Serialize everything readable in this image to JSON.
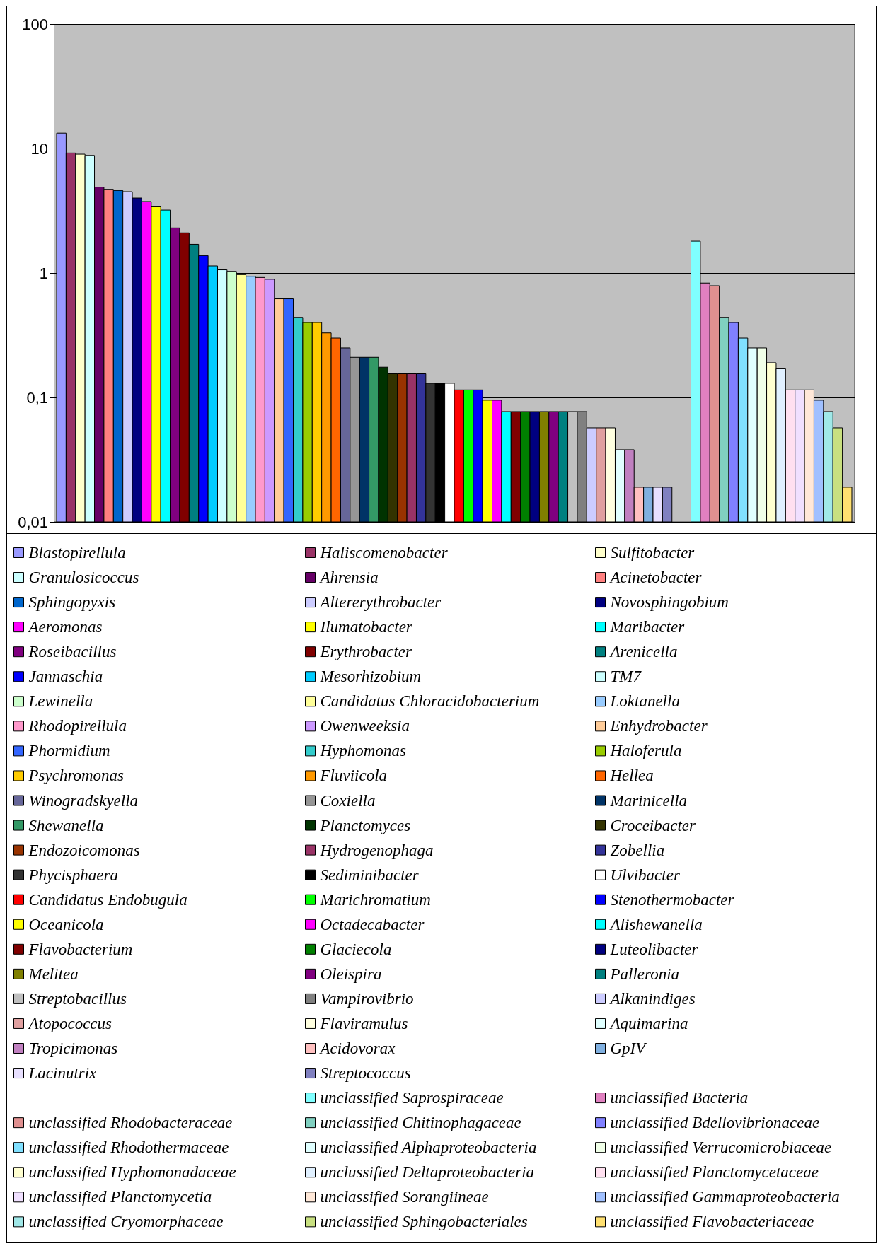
{
  "chart_data": {
    "type": "bar",
    "log": true,
    "grid": "y",
    "legend": "bottom",
    "ylim": [
      0.01,
      100
    ],
    "yticks": [
      {
        "value": 0.01,
        "label": "0,01"
      },
      {
        "value": 0.1,
        "label": "0,1"
      },
      1,
      10,
      100
    ],
    "categories": [
      null
    ],
    "series": [
      {
        "name": "Blastopirellula",
        "color": "#9999ff",
        "values": [
          13.3
        ]
      },
      {
        "name": "Haliscomenobacter",
        "color": "#993366",
        "values": [
          9.2
        ]
      },
      {
        "name": "Sulfitobacter",
        "color": "#ffffcc",
        "values": [
          9.0
        ]
      },
      {
        "name": "Granulosicoccus",
        "color": "#ccffff",
        "values": [
          8.8
        ]
      },
      {
        "name": "Ahrensia",
        "color": "#660066",
        "values": [
          4.9
        ]
      },
      {
        "name": "Acinetobacter",
        "color": "#ff8080",
        "values": [
          4.7
        ]
      },
      {
        "name": "Sphingopyxis",
        "color": "#0066cc",
        "values": [
          4.6
        ]
      },
      {
        "name": "Altererythrobacter",
        "color": "#ccccff",
        "values": [
          4.5
        ]
      },
      {
        "name": "Novosphingobium",
        "color": "#000080",
        "values": [
          4.0
        ]
      },
      {
        "name": "Aeromonas",
        "color": "#ff00ff",
        "values": [
          3.75
        ]
      },
      {
        "name": "Ilumatobacter",
        "color": "#ffff00",
        "values": [
          3.4
        ]
      },
      {
        "name": "Maribacter",
        "color": "#00ffff",
        "values": [
          3.2
        ]
      },
      {
        "name": "Roseibacillus",
        "color": "#800080",
        "values": [
          2.3
        ]
      },
      {
        "name": "Erythrobacter",
        "color": "#800000",
        "values": [
          2.1
        ]
      },
      {
        "name": "Arenicella",
        "color": "#008080",
        "values": [
          1.7
        ]
      },
      {
        "name": "Jannaschia",
        "color": "#0000ff",
        "values": [
          1.38
        ]
      },
      {
        "name": "Mesorhizobium",
        "color": "#00ccff",
        "values": [
          1.14
        ]
      },
      {
        "name": "TM7",
        "color": "#ccffff",
        "values": [
          1.06
        ]
      },
      {
        "name": "Lewinella",
        "color": "#ccffcc",
        "values": [
          1.03
        ]
      },
      {
        "name": "Candidatus Chloracidobacterium",
        "color": "#ffff99",
        "values": [
          0.97
        ]
      },
      {
        "name": "Loktanella",
        "color": "#99ccff",
        "values": [
          0.94
        ]
      },
      {
        "name": "Rhodopirellula",
        "color": "#ff99cc",
        "values": [
          0.92
        ]
      },
      {
        "name": "Owenweeksia",
        "color": "#cc99ff",
        "values": [
          0.89
        ]
      },
      {
        "name": "Enhydrobacter",
        "color": "#ffcc99",
        "values": [
          0.62
        ]
      },
      {
        "name": "Phormidium",
        "color": "#3366ff",
        "values": [
          0.62
        ]
      },
      {
        "name": "Hyphomonas",
        "color": "#33cccc",
        "values": [
          0.44
        ]
      },
      {
        "name": "Haloferula",
        "color": "#99cc00",
        "values": [
          0.4
        ]
      },
      {
        "name": "Psychromonas",
        "color": "#ffcc00",
        "values": [
          0.4
        ]
      },
      {
        "name": "Fluviicola",
        "color": "#ff9900",
        "values": [
          0.33
        ]
      },
      {
        "name": "Hellea",
        "color": "#ff6600",
        "values": [
          0.3
        ]
      },
      {
        "name": "Winogradskyella",
        "color": "#666699",
        "values": [
          0.25
        ]
      },
      {
        "name": "Coxiella",
        "color": "#969696",
        "values": [
          0.21
        ]
      },
      {
        "name": "Marinicella",
        "color": "#003366",
        "values": [
          0.21
        ]
      },
      {
        "name": "Shewanella",
        "color": "#339966",
        "values": [
          0.21
        ]
      },
      {
        "name": "Planctomyces",
        "color": "#003300",
        "values": [
          0.175
        ]
      },
      {
        "name": "Croceibacter",
        "color": "#333300",
        "values": [
          0.155
        ]
      },
      {
        "name": "Endozoicomonas",
        "color": "#993300",
        "values": [
          0.155
        ]
      },
      {
        "name": "Hydrogenophaga",
        "color": "#993366",
        "values": [
          0.155
        ]
      },
      {
        "name": "Zobellia",
        "color": "#333399",
        "values": [
          0.155
        ]
      },
      {
        "name": "Phycisphaera",
        "color": "#333333",
        "values": [
          0.13
        ]
      },
      {
        "name": "Sediminibacter",
        "color": "#000000",
        "values": [
          0.13
        ]
      },
      {
        "name": "Ulvibacter",
        "color": "#ffffff",
        "values": [
          0.13
        ]
      },
      {
        "name": "Candidatus Endobugula",
        "color": "#ff0000",
        "values": [
          0.115
        ]
      },
      {
        "name": "Marichromatium",
        "color": "#00ff00",
        "values": [
          0.115
        ]
      },
      {
        "name": "Stenothermobacter",
        "color": "#0000ff",
        "values": [
          0.115
        ]
      },
      {
        "name": "Oceanicola",
        "color": "#ffff00",
        "values": [
          0.095
        ]
      },
      {
        "name": "Octadecabacter",
        "color": "#ff00ff",
        "values": [
          0.095
        ]
      },
      {
        "name": "Alishewanella",
        "color": "#00ffff",
        "values": [
          0.077
        ]
      },
      {
        "name": "Flavobacterium",
        "color": "#800000",
        "values": [
          0.077
        ]
      },
      {
        "name": "Glaciecola",
        "color": "#008000",
        "values": [
          0.077
        ]
      },
      {
        "name": "Luteolibacter",
        "color": "#000080",
        "values": [
          0.077
        ]
      },
      {
        "name": "Melitea",
        "color": "#808000",
        "values": [
          0.077
        ]
      },
      {
        "name": "Oleispira",
        "color": "#800080",
        "values": [
          0.077
        ]
      },
      {
        "name": "Palleronia",
        "color": "#008080",
        "values": [
          0.077
        ]
      },
      {
        "name": "Streptobacillus",
        "color": "#c0c0c0",
        "values": [
          0.077
        ]
      },
      {
        "name": "Vampirovibrio",
        "color": "#808080",
        "values": [
          0.077
        ]
      },
      {
        "name": "Alkanindiges",
        "color": "#ccccff",
        "values": [
          0.057
        ]
      },
      {
        "name": "Atopococcus",
        "color": "#e0a0a0",
        "values": [
          0.057
        ]
      },
      {
        "name": "Flaviramulus",
        "color": "#ffffe0",
        "values": [
          0.057
        ]
      },
      {
        "name": "Aquimarina",
        "color": "#e0ffff",
        "values": [
          0.038
        ]
      },
      {
        "name": "Tropicimonas",
        "color": "#c080c0",
        "values": [
          0.038
        ]
      },
      {
        "name": "Acidovorax",
        "color": "#ffc0c0",
        "values": [
          0.019
        ]
      },
      {
        "name": "GpIV",
        "color": "#80b0e0",
        "values": [
          0.019
        ]
      },
      {
        "name": "Lacinutrix",
        "color": "#e8e0ff",
        "values": [
          0.019
        ]
      },
      {
        "name": "Streptococcus",
        "color": "#8080c0",
        "values": [
          0.019
        ]
      },
      {
        "values": [
          null
        ]
      },
      {
        "values": [
          null
        ]
      },
      {
        "name": "unclassified Saprospiraceae",
        "color": "#80ffff",
        "values": [
          1.8
        ]
      },
      {
        "name": "unclassified Bacteria",
        "color": "#e080c0",
        "values": [
          0.83
        ]
      },
      {
        "name": "unclassified Rhodobacteraceae",
        "color": "#e09090",
        "values": [
          0.79
        ]
      },
      {
        "name": "unclassified Chitinophagaceae",
        "color": "#80d0c0",
        "values": [
          0.44
        ]
      },
      {
        "name": "unclassified Bdellovibrionaceae",
        "color": "#8080ff",
        "values": [
          0.4
        ]
      },
      {
        "name": "unclassified Rhodothermaceae",
        "color": "#80e0ff",
        "values": [
          0.3
        ]
      },
      {
        "name": "unclassified Alphaproteobacteria",
        "color": "#e0ffff",
        "values": [
          0.25
        ]
      },
      {
        "name": "unclassified Verrucomicrobiaceae",
        "color": "#f0ffe8",
        "values": [
          0.25
        ]
      },
      {
        "name": "unclassified Hyphomonadaceae",
        "color": "#ffffd0",
        "values": [
          0.19
        ]
      },
      {
        "name": "unclussified Deltaproteobacteria",
        "color": "#e0f0ff",
        "values": [
          0.17
        ]
      },
      {
        "name": "unclassified Planctomycetaceae",
        "color": "#ffe0f0",
        "values": [
          0.115
        ]
      },
      {
        "name": "unclassified Planctomycetia",
        "color": "#f0e0ff",
        "values": [
          0.115
        ]
      },
      {
        "name": "unclassified Sorangiineae",
        "color": "#ffe8d8",
        "values": [
          0.115
        ]
      },
      {
        "name": "unclassified Gammaproteobacteria",
        "color": "#a0c0ff",
        "values": [
          0.095
        ]
      },
      {
        "name": "unclassified Cryomorphaceae",
        "color": "#a0e8e8",
        "values": [
          0.077
        ]
      },
      {
        "name": "unclassified Sphingobacteriales",
        "color": "#c8e080",
        "values": [
          0.057
        ]
      },
      {
        "name": "unclassified Flavobacteriaceae",
        "color": "#ffe070",
        "values": [
          0.019
        ]
      }
    ]
  }
}
